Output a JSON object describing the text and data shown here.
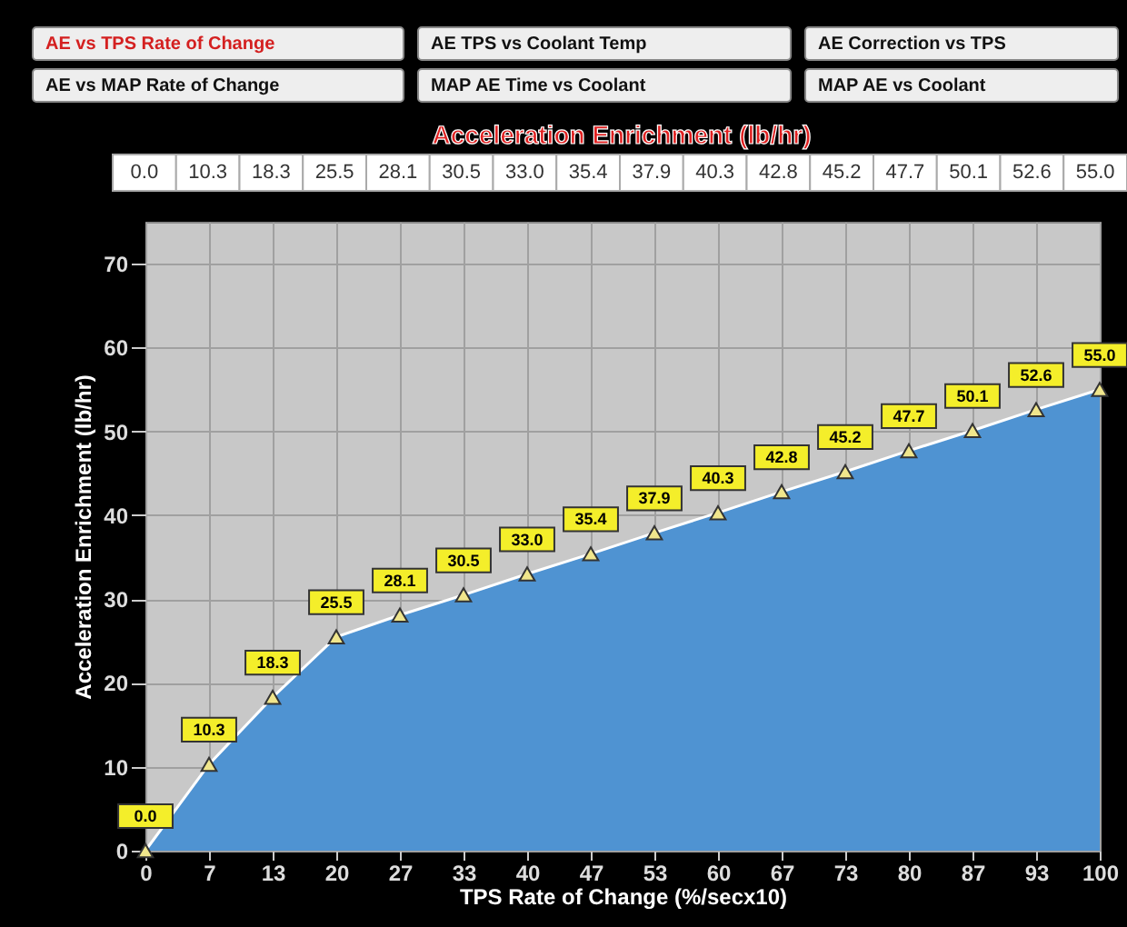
{
  "chart_data": {
    "type": "area",
    "title": "Acceleration Enrichment (lb/hr)",
    "xlabel": "TPS Rate of Change (%/secx10)",
    "ylabel": "Acceleration Enrichment (lb/hr)",
    "categories": [
      "0",
      "7",
      "13",
      "20",
      "27",
      "33",
      "40",
      "47",
      "53",
      "60",
      "67",
      "73",
      "80",
      "87",
      "93",
      "100"
    ],
    "values": [
      0.0,
      10.3,
      18.3,
      25.5,
      28.1,
      30.5,
      33.0,
      35.4,
      37.9,
      40.3,
      42.8,
      45.2,
      47.7,
      50.1,
      52.6,
      55.0
    ],
    "value_labels": [
      "0.0",
      "10.3",
      "18.3",
      "25.5",
      "28.1",
      "30.5",
      "33.0",
      "35.4",
      "37.9",
      "40.3",
      "42.8",
      "45.2",
      "47.7",
      "50.1",
      "52.6",
      "55.0"
    ],
    "color": "#4f93d2",
    "ylim": [
      0,
      75
    ],
    "yticks": [
      0,
      10,
      20,
      30,
      40,
      50,
      60,
      70
    ],
    "grid": true,
    "marker": "triangle",
    "annotations": [
      "AE vs TPS Rate of Change",
      "AE TPS vs Coolant Temp",
      "AE Correction vs TPS",
      "AE vs MAP Rate of Change",
      "MAP AE Time vs Coolant",
      "MAP AE vs Coolant"
    ]
  }
}
